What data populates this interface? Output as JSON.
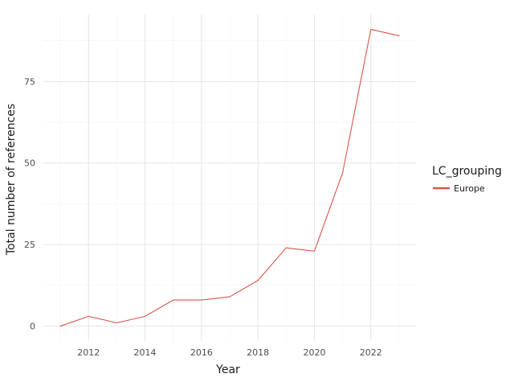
{
  "chart_data": {
    "type": "line",
    "title": "",
    "xlabel": "Year",
    "ylabel": "Total number of references",
    "x": [
      2011,
      2012,
      2013,
      2014,
      2015,
      2016,
      2017,
      2018,
      2019,
      2020,
      2021,
      2022,
      2023
    ],
    "series": [
      {
        "name": "Europe",
        "color": "#d9534a",
        "values": [
          0,
          3,
          1,
          3,
          8,
          8,
          9,
          14,
          24,
          23,
          47,
          91,
          89
        ]
      }
    ],
    "xlim": [
      2010.4,
      2023.6
    ],
    "ylim": [
      -4.55,
      95.55
    ],
    "xticks": [
      2012,
      2014,
      2016,
      2018,
      2020,
      2022
    ],
    "xtick_labels": [
      "2012",
      "2014",
      "2016",
      "2018",
      "2020",
      "2022"
    ],
    "yticks": [
      0,
      25,
      50,
      75
    ],
    "ytick_labels": [
      "0",
      "25",
      "50",
      "75"
    ],
    "grid": true,
    "legend": {
      "title": "LC_grouping",
      "position": "right"
    }
  }
}
